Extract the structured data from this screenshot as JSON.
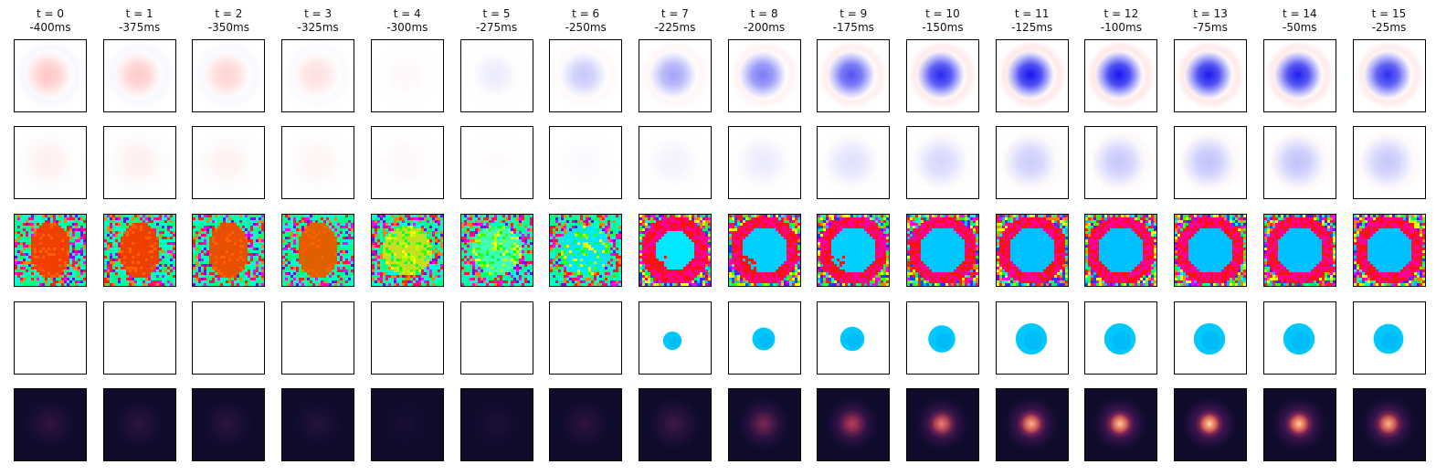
{
  "chart_data": {
    "type": "heatmap",
    "frame_index_prefix": "t = ",
    "columns": [
      {
        "index": 0,
        "offset_label": "-400ms"
      },
      {
        "index": 1,
        "offset_label": "-375ms"
      },
      {
        "index": 2,
        "offset_label": "-350ms"
      },
      {
        "index": 3,
        "offset_label": "-325ms"
      },
      {
        "index": 4,
        "offset_label": "-300ms"
      },
      {
        "index": 5,
        "offset_label": "-275ms"
      },
      {
        "index": 6,
        "offset_label": "-250ms"
      },
      {
        "index": 7,
        "offset_label": "-225ms"
      },
      {
        "index": 8,
        "offset_label": "-200ms"
      },
      {
        "index": 9,
        "offset_label": "-175ms"
      },
      {
        "index": 10,
        "offset_label": "-150ms"
      },
      {
        "index": 11,
        "offset_label": "-125ms"
      },
      {
        "index": 12,
        "offset_label": "-100ms"
      },
      {
        "index": 13,
        "offset_label": "-75ms"
      },
      {
        "index": 14,
        "offset_label": "-50ms"
      },
      {
        "index": 15,
        "offset_label": "-25ms"
      }
    ],
    "rows": [
      {
        "colormap": "bwr",
        "signed_center_strength": [
          -0.28,
          -0.26,
          -0.22,
          -0.16,
          -0.04,
          0.08,
          0.22,
          0.36,
          0.52,
          0.68,
          0.85,
          0.92,
          0.92,
          0.9,
          0.88,
          0.82
        ]
      },
      {
        "colormap": "bwr",
        "signed_center_strength": [
          -0.08,
          -0.08,
          -0.07,
          -0.06,
          -0.04,
          -0.02,
          0.02,
          0.05,
          0.08,
          0.12,
          0.16,
          0.2,
          0.22,
          0.24,
          0.24,
          0.22
        ]
      },
      {
        "colormap": "hsv",
        "center_color": [
          "#f04000",
          "#f04000",
          "#e85000",
          "#e06000",
          "#c0e020",
          "#40ffb0",
          "#00e8ff",
          "#00e8ff",
          "#00d0ff",
          "#00d0ff",
          "#00c8ff",
          "#00c0ff",
          "#00c0ff",
          "#00c0ff",
          "#00c0ff",
          "#00c0ff"
        ]
      },
      {
        "colormap": "masked_hsv",
        "blob_color": "#00c8ff",
        "blob_radius_fraction": [
          0,
          0,
          0,
          0,
          0,
          0,
          0,
          0.13,
          0.16,
          0.17,
          0.19,
          0.22,
          0.22,
          0.22,
          0.22,
          0.21
        ]
      },
      {
        "colormap": "magma",
        "peak_intensity": [
          0.3,
          0.28,
          0.26,
          0.2,
          0.1,
          0.14,
          0.28,
          0.42,
          0.58,
          0.72,
          0.82,
          0.9,
          0.94,
          0.96,
          0.94,
          0.9
        ]
      }
    ],
    "colors": {
      "bwr_negative": "#ff3333",
      "bwr_positive": "#0000ee",
      "magma_background": "#0e0b2b",
      "hsv_ring_magenta": "#ff0090",
      "hsv_ring_red": "#ff1010"
    }
  }
}
